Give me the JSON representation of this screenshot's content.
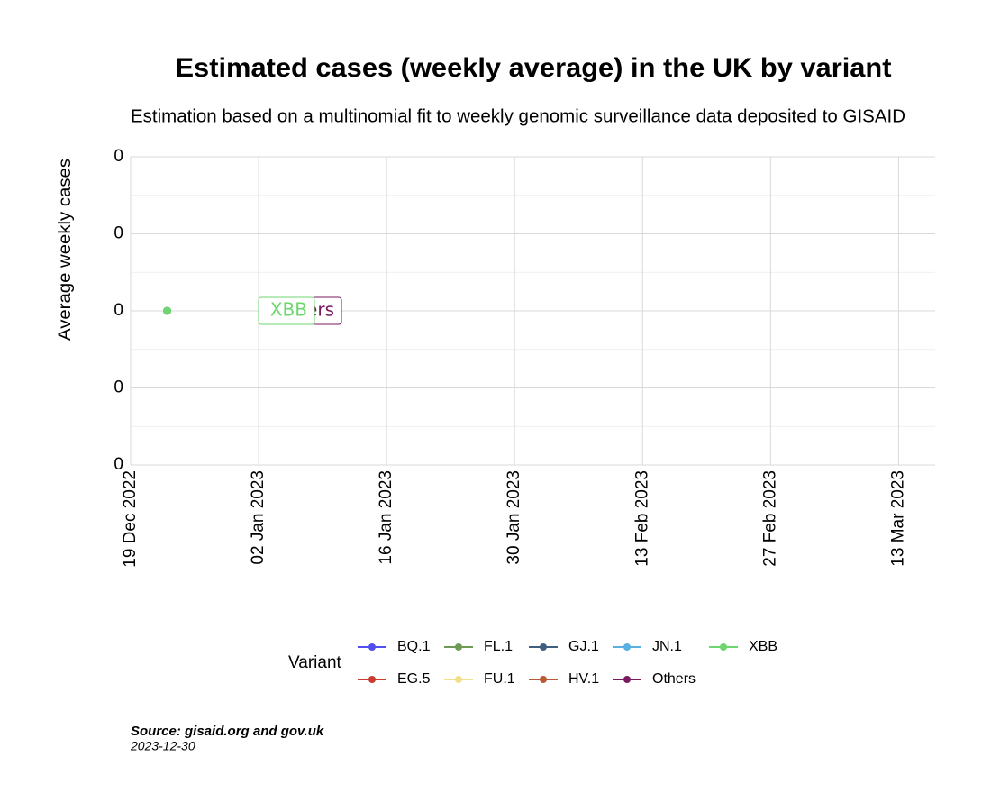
{
  "chart_data": {
    "type": "line",
    "title": "Estimated cases (weekly average) in the UK by variant",
    "subtitle": "Estimation based on a multinomial fit to weekly genomic surveillance data deposited to GISAID",
    "y_label": "Average weekly cases",
    "legend_title": "Variant",
    "caption": "Source: gisaid.org and gov.uk",
    "date": "2023-12-30",
    "x": [
      "2022-12-23"
    ],
    "xlim": [
      "2022-12-19",
      "2023-03-17"
    ],
    "xticks": [
      {
        "value": "2022-12-19",
        "label": "19 Dec 2022"
      },
      {
        "value": "2023-01-02",
        "label": "02 Jan 2023"
      },
      {
        "value": "2023-01-16",
        "label": "16 Jan 2023"
      },
      {
        "value": "2023-01-30",
        "label": "30 Jan 2023"
      },
      {
        "value": "2023-02-13",
        "label": "13 Feb 2023"
      },
      {
        "value": "2023-02-27",
        "label": "27 Feb 2023"
      },
      {
        "value": "2023-03-13",
        "label": "13 Mar 2023"
      }
    ],
    "ylim": [
      -0.04,
      0.04
    ],
    "yticks": [
      {
        "value": -0.04,
        "label": "0"
      },
      {
        "value": -0.02,
        "label": "0"
      },
      0,
      {
        "value": 0.02,
        "label": "0"
      },
      {
        "value": 0.04,
        "label": "0"
      }
    ],
    "grid": true,
    "legend_position": "bottom",
    "series": [
      {
        "name": "BQ.1",
        "color": "#5050f0",
        "values": [
          null
        ]
      },
      {
        "name": "EG.5",
        "color": "#cc3b2e",
        "values": [
          null
        ]
      },
      {
        "name": "FL.1",
        "color": "#6f9a55",
        "values": [
          null
        ]
      },
      {
        "name": "FU.1",
        "color": "#f0e08a",
        "values": [
          null
        ]
      },
      {
        "name": "GJ.1",
        "color": "#3f5f80",
        "values": [
          null
        ]
      },
      {
        "name": "HV.1",
        "color": "#b85a35",
        "values": [
          null
        ]
      },
      {
        "name": "JN.1",
        "color": "#5ab0e0",
        "values": [
          null
        ]
      },
      {
        "name": "Others",
        "color": "#7a1a5e",
        "values": [
          0
        ]
      },
      {
        "name": "XBB",
        "color": "#6dd66d",
        "values": [
          0
        ]
      }
    ]
  }
}
